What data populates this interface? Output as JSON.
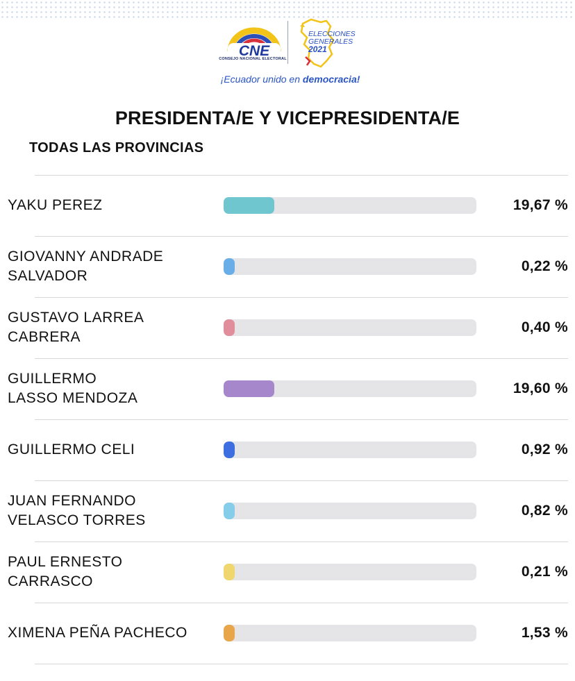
{
  "header": {
    "logo_cne": "CNE",
    "logo_cne_sub": "CONSEJO NACIONAL ELECTORAL",
    "logo_elecciones_line1": "ELECCIONES",
    "logo_elecciones_line2": "GENERALES",
    "logo_elecciones_year": "2021",
    "slogan_prefix": "¡Ecuador unido en ",
    "slogan_bold": "democracia!"
  },
  "title": "PRESIDENTA/E Y VICEPRESIDENTA/E",
  "subtitle": "TODAS LAS PROVINCIAS",
  "colors": {
    "yaku": "#6fc6cf",
    "giovanny": "#6aaee8",
    "gustavo": "#e08d9c",
    "guillermo_lasso": "#a687cc",
    "guillermo_celi": "#3d6fe0",
    "juan": "#86cdea",
    "paul": "#f0d66f",
    "ximena": "#e8a64a"
  },
  "candidates": [
    {
      "name": "YAKU PEREZ",
      "percent_label": "19,67 %",
      "percent": 19.67,
      "bar_fraction": 0.2,
      "color": "#6fc6cf"
    },
    {
      "name": "GIOVANNY ANDRADE\nSALVADOR",
      "percent_label": "0,22 %",
      "percent": 0.22,
      "bar_fraction": 0.045,
      "color": "#6aaee8"
    },
    {
      "name": "GUSTAVO LARREA\nCABRERA",
      "percent_label": "0,40 %",
      "percent": 0.4,
      "bar_fraction": 0.045,
      "color": "#e08d9c"
    },
    {
      "name": "GUILLERMO\nLASSO MENDOZA",
      "percent_label": "19,60 %",
      "percent": 19.6,
      "bar_fraction": 0.2,
      "color": "#a687cc"
    },
    {
      "name": "GUILLERMO CELI",
      "percent_label": "0,92 %",
      "percent": 0.92,
      "bar_fraction": 0.045,
      "color": "#3d6fe0"
    },
    {
      "name": "JUAN FERNANDO\nVELASCO TORRES",
      "percent_label": "0,82 %",
      "percent": 0.82,
      "bar_fraction": 0.045,
      "color": "#86cdea"
    },
    {
      "name": "PAUL ERNESTO\nCARRASCO",
      "percent_label": "0,21 %",
      "percent": 0.21,
      "bar_fraction": 0.045,
      "color": "#f0d66f"
    },
    {
      "name": "XIMENA PEÑA PACHECO",
      "percent_label": "1,53 %",
      "percent": 1.53,
      "bar_fraction": 0.045,
      "color": "#e8a64a"
    }
  ]
}
